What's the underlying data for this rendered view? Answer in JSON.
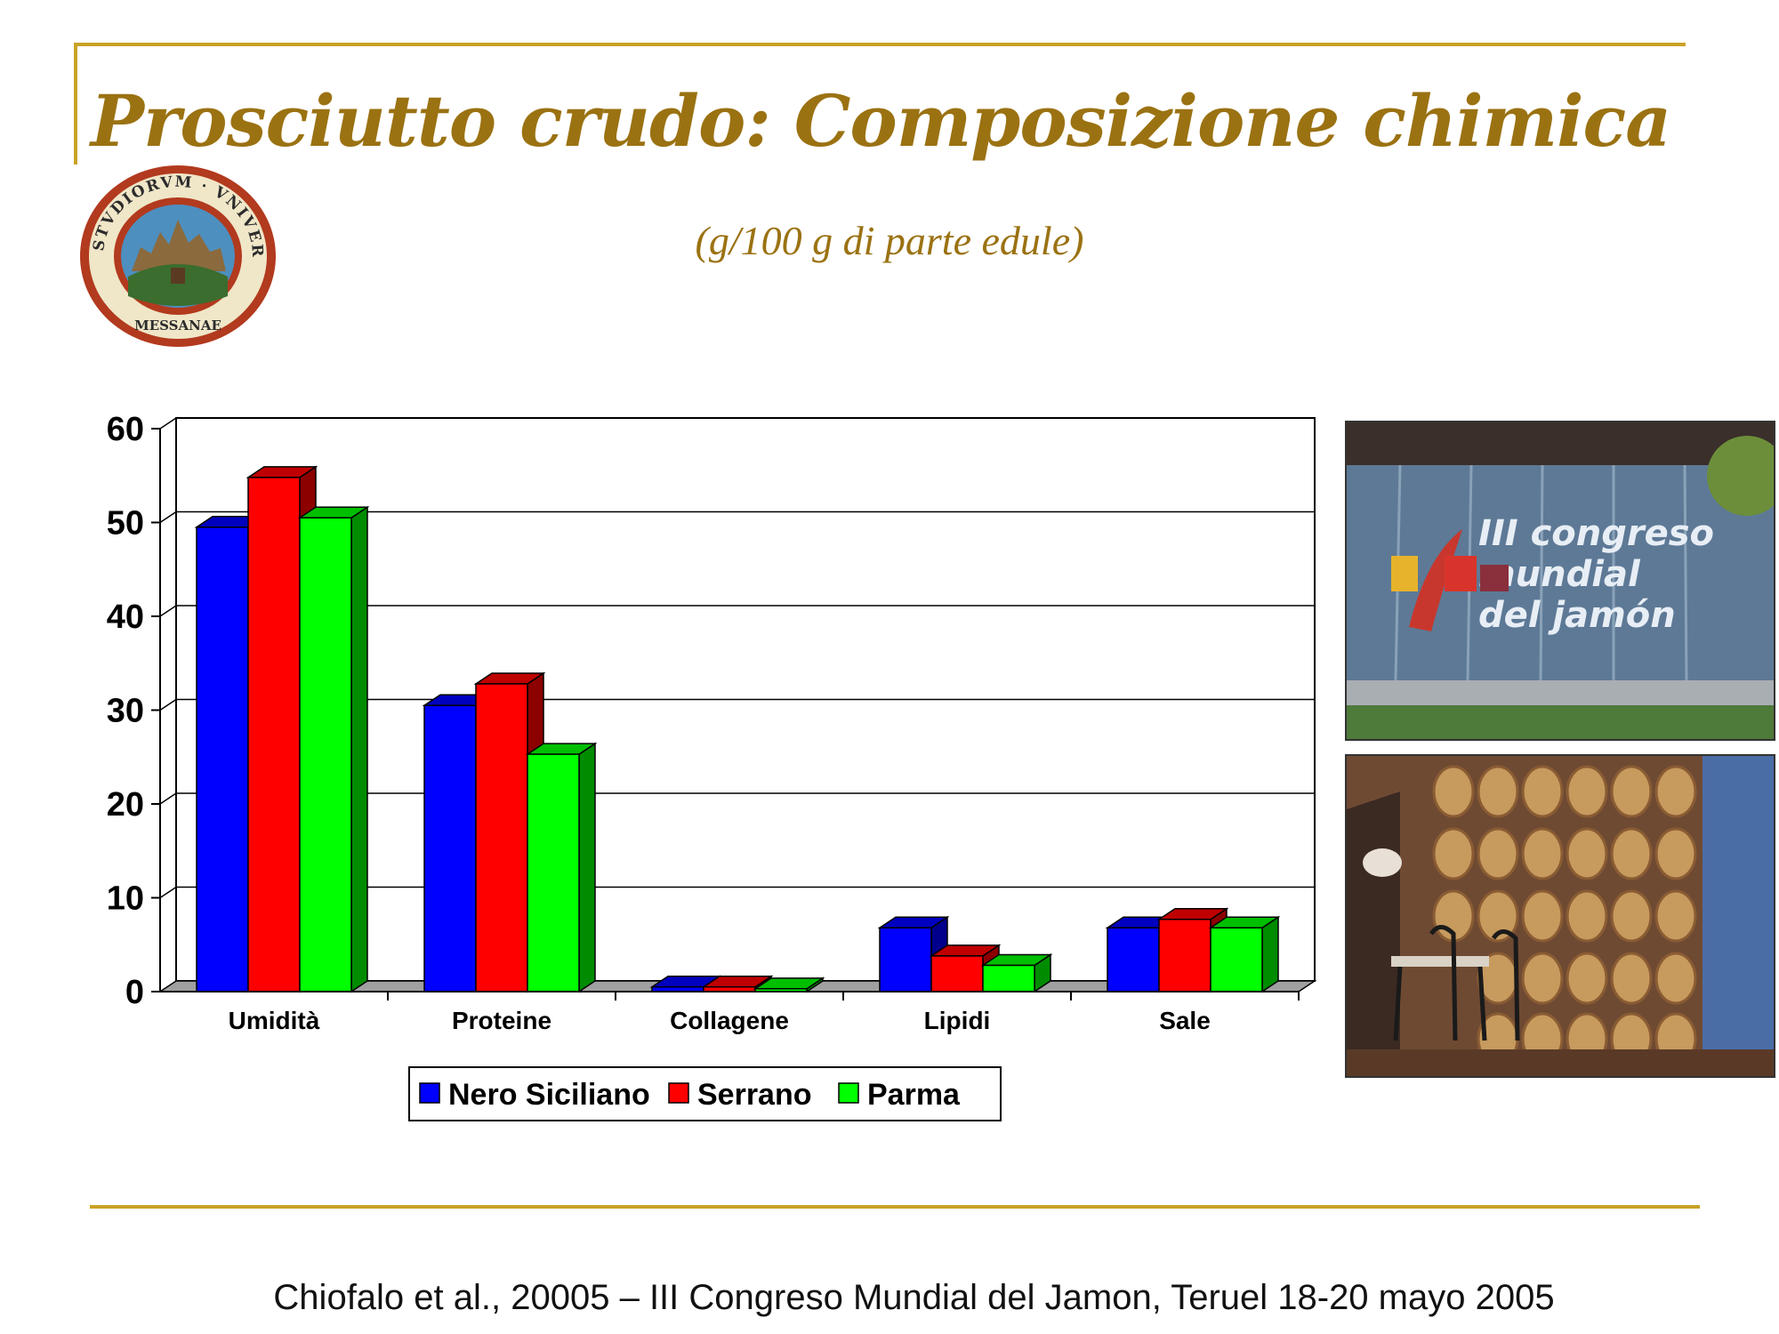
{
  "slide": {
    "title": "Prosciutto crudo: Composizione chimica",
    "subtitle": "(g/100 g di parte edule)",
    "citation": "Chiofalo et al., 20005 – III Congreso Mundial del Jamon, Teruel 18-20 mayo 2005",
    "accent_color": "#c9a227",
    "title_color": "#9b7212"
  },
  "seal": {
    "text": "STVDIORVM VNIVERSITAS MESSANAE",
    "icon": "university-seal-icon"
  },
  "photos": [
    {
      "icon": "congress-building-photo",
      "banner_lines": [
        "III congreso",
        "mundial",
        "del jamón"
      ]
    },
    {
      "icon": "ham-display-photo"
    }
  ],
  "chart_data": {
    "type": "bar",
    "categories": [
      "Umidità",
      "Proteine",
      "Collagene",
      "Lipidi",
      "Sale"
    ],
    "series": [
      {
        "name": "Nero Siciliano",
        "values": [
          49.5,
          30.5,
          0.5,
          6.8,
          6.8
        ],
        "color": "#0000ff"
      },
      {
        "name": "Serrano",
        "values": [
          54.8,
          32.8,
          0.5,
          3.8,
          7.7
        ],
        "color": "#ff0000"
      },
      {
        "name": "Parma",
        "values": [
          50.5,
          25.3,
          0.3,
          2.8,
          6.8
        ],
        "color": "#00ff00"
      }
    ],
    "yticks": [
      "0",
      "10",
      "20",
      "30",
      "40",
      "50",
      "60"
    ],
    "ylim": [
      0,
      60
    ],
    "grid": true,
    "legend_position": "bottom"
  }
}
